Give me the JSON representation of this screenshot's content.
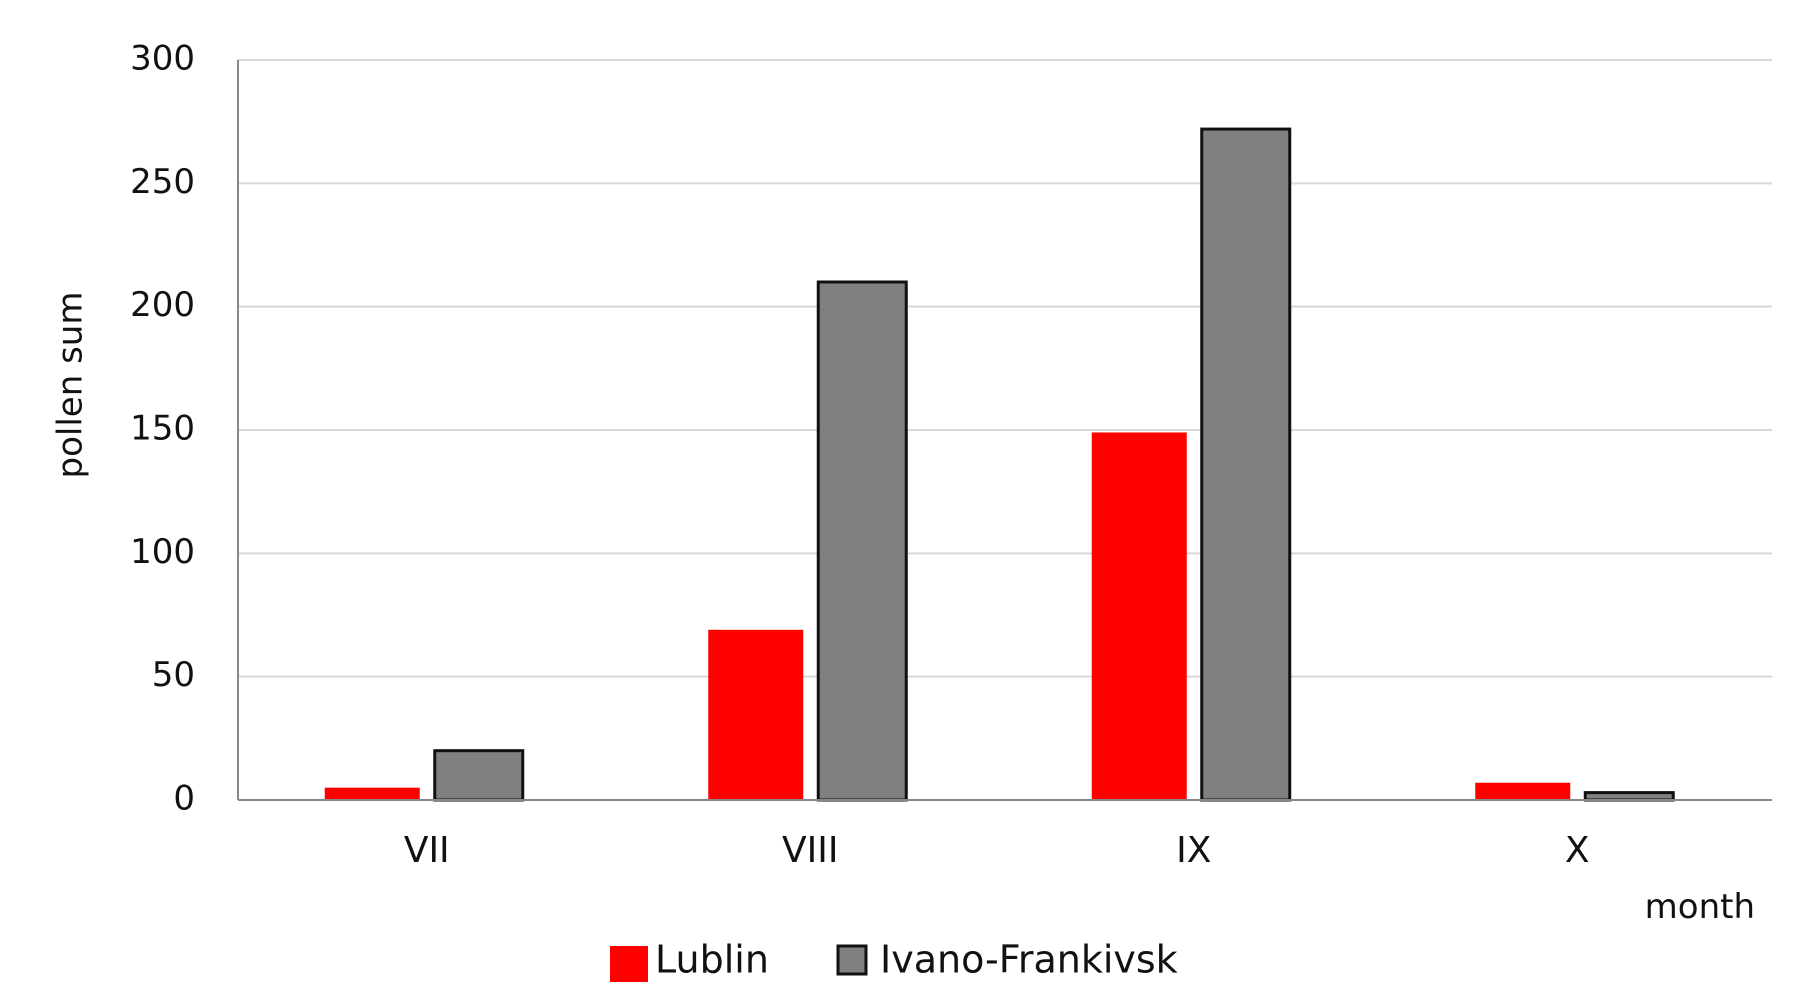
{
  "chart_data": {
    "type": "bar",
    "title": "",
    "xlabel": "month",
    "ylabel": "pollen sum",
    "categories": [
      "VII",
      "VIII",
      "IX",
      "X"
    ],
    "series": [
      {
        "name": "Lublin",
        "color": "#ff0000",
        "values": [
          5,
          69,
          149,
          7
        ]
      },
      {
        "name": "Ivano-Frankivsk",
        "color": "#808080",
        "values": [
          20,
          210,
          272,
          3
        ]
      }
    ],
    "ylim": [
      0,
      300
    ],
    "yticks": [
      "0",
      "50",
      "100",
      "150",
      "200",
      "250",
      "300"
    ],
    "grid": "horizontal",
    "legend_position": "bottom-center"
  }
}
